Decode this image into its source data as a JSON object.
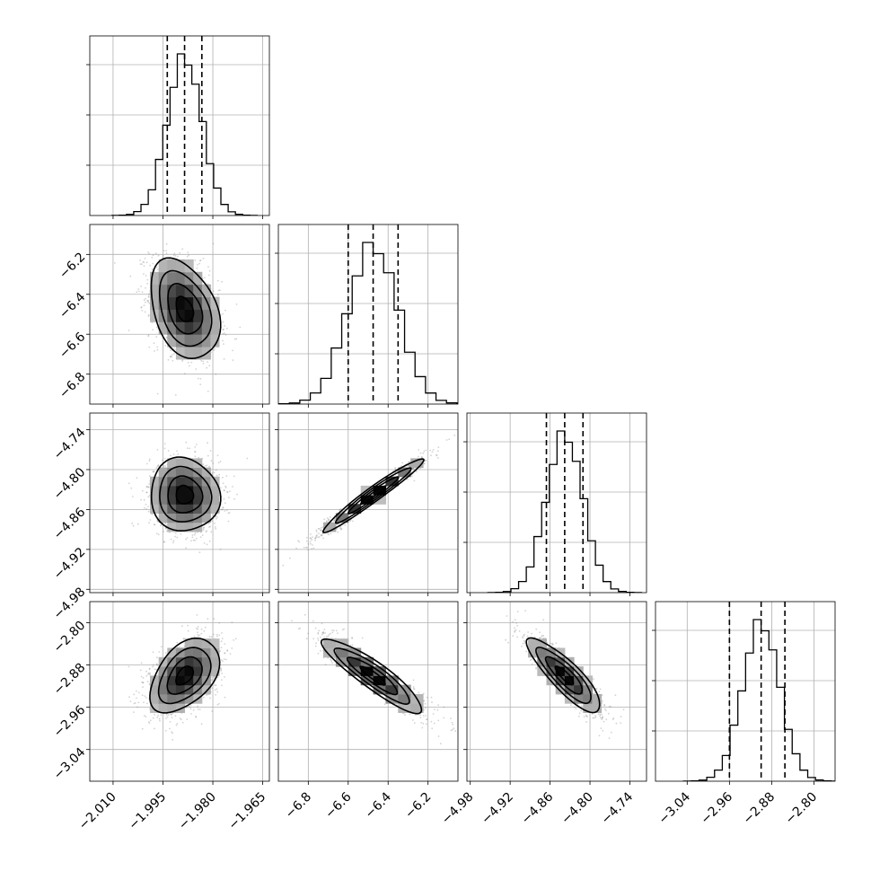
{
  "chart_data": {
    "type": "corner",
    "grid": true,
    "colors": {
      "line": "#000000",
      "grid": "#b0b0b0",
      "scatter": "#808080",
      "density_dark": "#000000",
      "density_light": "#d9d9d9"
    },
    "parameters": [
      {
        "range": [
          -2.017,
          -1.963
        ],
        "ticks": [
          "−2.010",
          "−1.995",
          "−1.980",
          "−1.965"
        ],
        "tick_values": [
          -2.01,
          -1.995,
          -1.98,
          -1.965
        ],
        "mean": -1.9885,
        "sd": 0.0052,
        "quantiles": [
          -1.9937,
          -1.9885,
          -1.9833
        ]
      },
      {
        "range": [
          -6.95,
          -6.05
        ],
        "ticks": [
          "−6.8",
          "−6.6",
          "−6.4",
          "−6.2"
        ],
        "tick_values": [
          -6.8,
          -6.6,
          -6.4,
          -6.2
        ],
        "mean": -6.475,
        "sd": 0.125,
        "quantiles": [
          -6.6,
          -6.475,
          -6.35
        ]
      },
      {
        "range": [
          -4.985,
          -4.715
        ],
        "ticks": [
          "−4.98",
          "−4.92",
          "−4.86",
          "−4.80",
          "−4.74"
        ],
        "tick_values": [
          -4.98,
          -4.92,
          -4.86,
          -4.8,
          -4.74
        ],
        "mean": -4.838,
        "sd": 0.0275,
        "quantiles": [
          -4.8655,
          -4.838,
          -4.8105
        ]
      },
      {
        "range": [
          -3.1,
          -2.76
        ],
        "ticks": [
          "−3.04",
          "−2.96",
          "−2.88",
          "−2.80"
        ],
        "tick_values": [
          -3.04,
          -2.96,
          -2.88,
          -2.8
        ],
        "mean": -2.9,
        "sd": 0.035,
        "quantiles": [
          -2.96,
          -2.9,
          -2.855
        ]
      }
    ],
    "correlations": [
      [
        1.0,
        -0.35,
        -0.05,
        0.45
      ],
      [
        -0.35,
        1.0,
        0.97,
        -0.9
      ],
      [
        -0.05,
        0.97,
        1.0,
        -0.85
      ],
      [
        0.45,
        -0.9,
        -0.85,
        1.0
      ]
    ],
    "contour_levels_sigma": [
      0.5,
      1.0,
      1.5,
      2.0
    ]
  }
}
